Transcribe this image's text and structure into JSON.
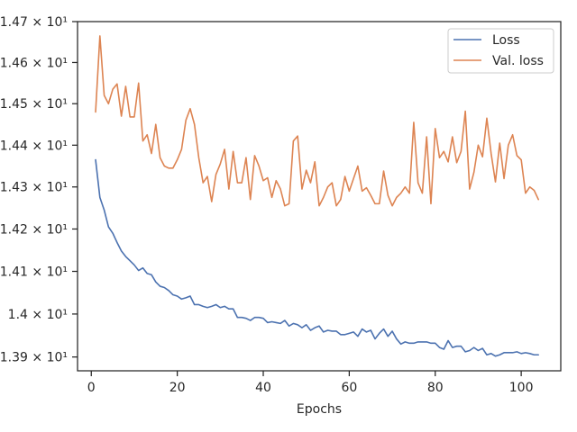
{
  "chart_data": {
    "type": "line",
    "title": "",
    "xlabel": "Epochs",
    "ylabel": "",
    "xlim": [
      -3.2,
      109.2
    ],
    "ylim": [
      13.868,
      14.7
    ],
    "x_ticks": [
      {
        "value": 0,
        "label": "0"
      },
      {
        "value": 20,
        "label": "20"
      },
      {
        "value": 40,
        "label": "40"
      },
      {
        "value": 60,
        "label": "60"
      },
      {
        "value": 80,
        "label": "80"
      },
      {
        "value": 100,
        "label": "100"
      }
    ],
    "y_ticks": [
      {
        "value": 14.7,
        "label": "1.47 × 10¹"
      },
      {
        "value": 14.6,
        "label": "1.46 × 10¹"
      },
      {
        "value": 14.5,
        "label": "1.45 × 10¹"
      },
      {
        "value": 14.4,
        "label": "1.44 × 10¹"
      },
      {
        "value": 14.3,
        "label": "1.43 × 10¹"
      },
      {
        "value": 14.2,
        "label": "1.42 × 10¹"
      },
      {
        "value": 14.1,
        "label": "1.41 × 10¹"
      },
      {
        "value": 14.0,
        "label": "1.4 × 10¹"
      },
      {
        "value": 13.9,
        "label": "1.39 × 10¹"
      }
    ],
    "y_scale": "log",
    "grid": false,
    "legend_position": "top-right",
    "series": [
      {
        "name": "Loss",
        "color": "#4c72b0",
        "x": [
          1,
          2,
          3,
          4,
          5,
          6,
          7,
          8,
          9,
          10,
          11,
          12,
          13,
          14,
          15,
          16,
          17,
          18,
          19,
          20,
          21,
          22,
          23,
          24,
          25,
          26,
          27,
          28,
          29,
          30,
          31,
          32,
          33,
          34,
          35,
          36,
          37,
          38,
          39,
          40,
          41,
          42,
          43,
          44,
          45,
          46,
          47,
          48,
          49,
          50,
          51,
          52,
          53,
          54,
          55,
          56,
          57,
          58,
          59,
          60,
          61,
          62,
          63,
          64,
          65,
          66,
          67,
          68,
          69,
          70,
          71,
          72,
          73,
          74,
          75,
          76,
          77,
          78,
          79,
          80,
          81,
          82,
          83,
          84,
          85,
          86,
          87,
          88,
          89,
          90,
          91,
          92,
          93,
          94,
          95,
          96,
          97,
          98,
          99,
          100,
          101,
          102,
          103,
          104
        ],
        "values": [
          14.365,
          14.275,
          14.245,
          14.205,
          14.19,
          14.168,
          14.148,
          14.135,
          14.125,
          14.115,
          14.102,
          14.108,
          14.095,
          14.092,
          14.075,
          14.065,
          14.062,
          14.055,
          14.045,
          14.042,
          14.035,
          14.038,
          14.042,
          14.022,
          14.022,
          14.018,
          14.015,
          14.018,
          14.022,
          14.015,
          14.018,
          14.012,
          14.012,
          13.992,
          13.992,
          13.99,
          13.985,
          13.992,
          13.992,
          13.99,
          13.98,
          13.982,
          13.98,
          13.978,
          13.985,
          13.972,
          13.978,
          13.975,
          13.968,
          13.975,
          13.962,
          13.968,
          13.972,
          13.958,
          13.962,
          13.96,
          13.96,
          13.952,
          13.952,
          13.955,
          13.958,
          13.948,
          13.965,
          13.958,
          13.962,
          13.942,
          13.955,
          13.965,
          13.948,
          13.96,
          13.942,
          13.93,
          13.935,
          13.932,
          13.932,
          13.935,
          13.935,
          13.935,
          13.932,
          13.932,
          13.922,
          13.918,
          13.938,
          13.922,
          13.925,
          13.925,
          13.912,
          13.915,
          13.922,
          13.915,
          13.92,
          13.905,
          13.908,
          13.902,
          13.905,
          13.91,
          13.91,
          13.91,
          13.912,
          13.908,
          13.91,
          13.908,
          13.905,
          13.905
        ]
      },
      {
        "name": "Val. loss",
        "color": "#dd8452",
        "x": [
          1,
          2,
          3,
          4,
          5,
          6,
          7,
          8,
          9,
          10,
          11,
          12,
          13,
          14,
          15,
          16,
          17,
          18,
          19,
          20,
          21,
          22,
          23,
          24,
          25,
          26,
          27,
          28,
          29,
          30,
          31,
          32,
          33,
          34,
          35,
          36,
          37,
          38,
          39,
          40,
          41,
          42,
          43,
          44,
          45,
          46,
          47,
          48,
          49,
          50,
          51,
          52,
          53,
          54,
          55,
          56,
          57,
          58,
          59,
          60,
          61,
          62,
          63,
          64,
          65,
          66,
          67,
          68,
          69,
          70,
          71,
          72,
          73,
          74,
          75,
          76,
          77,
          78,
          79,
          80,
          81,
          82,
          83,
          84,
          85,
          86,
          87,
          88,
          89,
          90,
          91,
          92,
          93,
          94,
          95,
          96,
          97,
          98,
          99,
          100,
          101,
          102,
          103,
          104
        ],
        "values": [
          14.48,
          14.665,
          14.52,
          14.5,
          14.535,
          14.548,
          14.47,
          14.542,
          14.468,
          14.468,
          14.55,
          14.41,
          14.425,
          14.38,
          14.45,
          14.37,
          14.35,
          14.345,
          14.345,
          14.365,
          14.39,
          14.46,
          14.488,
          14.45,
          14.37,
          14.31,
          14.325,
          14.265,
          14.33,
          14.355,
          14.39,
          14.295,
          14.385,
          14.31,
          14.31,
          14.37,
          14.27,
          14.375,
          14.35,
          14.315,
          14.322,
          14.275,
          14.315,
          14.295,
          14.255,
          14.26,
          14.41,
          14.422,
          14.295,
          14.34,
          14.31,
          14.36,
          14.255,
          14.275,
          14.3,
          14.31,
          14.255,
          14.27,
          14.325,
          14.29,
          14.32,
          14.35,
          14.29,
          14.298,
          14.28,
          14.26,
          14.26,
          14.338,
          14.28,
          14.255,
          14.275,
          14.285,
          14.3,
          14.285,
          14.455,
          14.31,
          14.285,
          14.42,
          14.26,
          14.44,
          14.37,
          14.385,
          14.36,
          14.42,
          14.358,
          14.385,
          14.482,
          14.295,
          14.335,
          14.4,
          14.372,
          14.465,
          14.38,
          14.312,
          14.405,
          14.32,
          14.4,
          14.425,
          14.375,
          14.365,
          14.285,
          14.3,
          14.292,
          14.27
        ]
      }
    ]
  }
}
